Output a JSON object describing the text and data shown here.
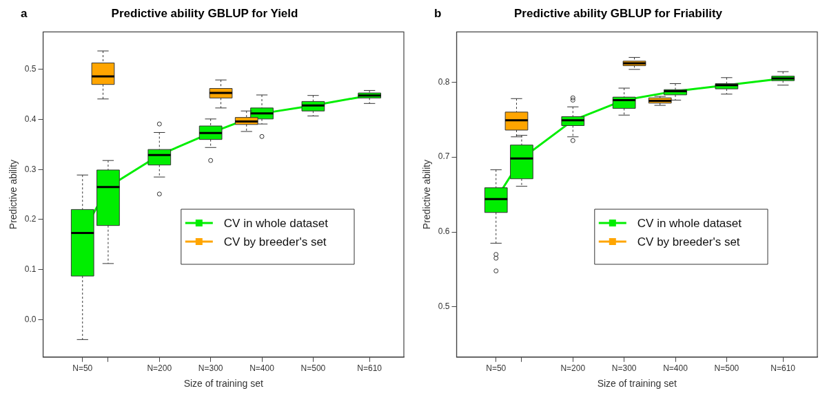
{
  "chart_data": [
    {
      "type": "box",
      "title": "Predictive ability GBLUP for Yield",
      "annotations": [
        "a"
      ],
      "xlabel": "Size of training set",
      "ylabel": "Predictive ability",
      "xlim": [
        -27,
        677
      ],
      "xticks": [
        {
          "value": 50,
          "label": "N=50"
        },
        {
          "value": 100,
          "label": null
        },
        {
          "value": 200,
          "label": "N=200"
        },
        {
          "value": 300,
          "label": "N=300"
        },
        {
          "value": 400,
          "label": "N=400"
        },
        {
          "value": 500,
          "label": "N=500"
        },
        {
          "value": 610,
          "label": "N=610"
        }
      ],
      "ylim": [
        -0.075,
        0.575
      ],
      "yticks": [
        {
          "value": 0,
          "label": "0.0"
        },
        0.1,
        0.2,
        0.3,
        0.4,
        0.5
      ],
      "legend": "right",
      "series": [
        {
          "name": "CV in whole dataset",
          "color": "#00ee00",
          "x": [
            50,
            100,
            200,
            300,
            400,
            500,
            610
          ],
          "boxes": [
            {
              "low": -0.04,
              "q1": 0.087,
              "median": 0.173,
              "q3": 0.22,
              "high": 0.289
            },
            {
              "low": 0.112,
              "q1": 0.188,
              "median": 0.265,
              "q3": 0.299,
              "high": 0.318
            },
            {
              "low": 0.285,
              "q1": 0.309,
              "median": 0.329,
              "q3": 0.34,
              "high": 0.374,
              "outliers": [
                0.391,
                0.251
              ]
            },
            {
              "low": 0.344,
              "q1": 0.36,
              "median": 0.373,
              "q3": 0.387,
              "high": 0.401,
              "outliers": [
                0.318
              ]
            },
            {
              "low": 0.391,
              "q1": 0.401,
              "median": 0.412,
              "q3": 0.423,
              "high": 0.449,
              "outliers": [
                0.366
              ]
            },
            {
              "low": 0.407,
              "q1": 0.417,
              "median": 0.428,
              "q3": 0.436,
              "high": 0.448
            },
            {
              "low": 0.432,
              "q1": 0.443,
              "median": 0.448,
              "q3": 0.453,
              "high": 0.458
            }
          ]
        },
        {
          "name": "CV by breeder's set",
          "color": "#ffa500",
          "x": [
            90,
            320,
            370
          ],
          "boxes": [
            {
              "low": 0.441,
              "q1": 0.47,
              "median": 0.486,
              "q3": 0.513,
              "high": 0.537
            },
            {
              "low": 0.423,
              "q1": 0.443,
              "median": 0.453,
              "q3": 0.462,
              "high": 0.479
            },
            {
              "low": 0.376,
              "q1": 0.39,
              "median": 0.396,
              "q3": 0.404,
              "high": 0.417
            }
          ]
        },
        {
          "type": "line",
          "color": "#00ee00",
          "x": [
            50,
            100,
            200,
            300,
            400,
            500,
            610
          ],
          "values": [
            0.173,
            0.265,
            0.329,
            0.373,
            0.412,
            0.428,
            0.448
          ]
        }
      ]
    },
    {
      "type": "box",
      "title": "Predictive ability GBLUP for Friability",
      "annotations": [
        "b"
      ],
      "xlabel": "Size of training set",
      "ylabel": "Predictive ability",
      "xlim": [
        -27,
        677
      ],
      "xticks": [
        {
          "value": 50,
          "label": "N=50"
        },
        {
          "value": 100,
          "label": null
        },
        {
          "value": 200,
          "label": "N=200"
        },
        {
          "value": 300,
          "label": "N=300"
        },
        {
          "value": 400,
          "label": "N=400"
        },
        {
          "value": 500,
          "label": "N=500"
        },
        {
          "value": 610,
          "label": "N=610"
        }
      ],
      "ylim": [
        0.433,
        0.867
      ],
      "yticks": [
        0.5,
        0.6,
        0.7,
        0.8
      ],
      "legend": "right",
      "series": [
        {
          "name": "CV in whole dataset",
          "color": "#00ee00",
          "x": [
            50,
            100,
            200,
            300,
            400,
            500,
            610
          ],
          "boxes": [
            {
              "low": 0.585,
              "q1": 0.626,
              "median": 0.644,
              "q3": 0.659,
              "high": 0.683,
              "outliers": [
                0.57,
                0.565,
                0.548
              ]
            },
            {
              "low": 0.661,
              "q1": 0.671,
              "median": 0.698,
              "q3": 0.716,
              "high": 0.729
            },
            {
              "low": 0.727,
              "q1": 0.742,
              "median": 0.749,
              "q3": 0.754,
              "high": 0.767,
              "outliers": [
                0.779,
                0.776,
                0.722
              ]
            },
            {
              "low": 0.756,
              "q1": 0.765,
              "median": 0.776,
              "q3": 0.78,
              "high": 0.792
            },
            {
              "low": 0.776,
              "q1": 0.783,
              "median": 0.788,
              "q3": 0.79,
              "high": 0.798
            },
            {
              "low": 0.784,
              "q1": 0.791,
              "median": 0.796,
              "q3": 0.798,
              "high": 0.806
            },
            {
              "low": 0.796,
              "q1": 0.802,
              "median": 0.805,
              "q3": 0.808,
              "high": 0.814
            }
          ]
        },
        {
          "name": "CV by breeder's set",
          "color": "#ffa500",
          "x": [
            90,
            320,
            370
          ],
          "boxes": [
            {
              "low": 0.727,
              "q1": 0.736,
              "median": 0.749,
              "q3": 0.76,
              "high": 0.778
            },
            {
              "low": 0.817,
              "q1": 0.822,
              "median": 0.825,
              "q3": 0.828,
              "high": 0.833
            },
            {
              "low": 0.769,
              "q1": 0.772,
              "median": 0.775,
              "q3": 0.779,
              "high": 0.781
            }
          ]
        },
        {
          "type": "line",
          "color": "#00ee00",
          "x": [
            50,
            100,
            200,
            300,
            400,
            500,
            610
          ],
          "values": [
            0.644,
            0.698,
            0.749,
            0.776,
            0.788,
            0.796,
            0.805
          ]
        }
      ]
    }
  ]
}
